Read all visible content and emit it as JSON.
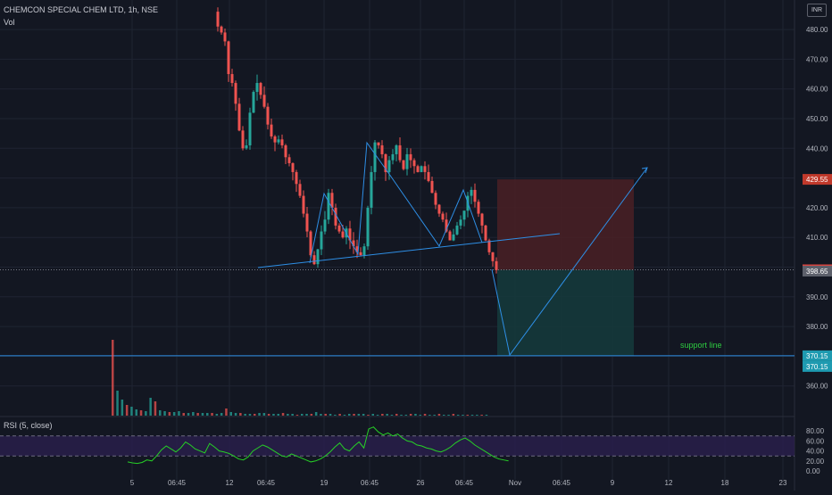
{
  "header": {
    "title": "CHEMCON SPECIAL CHEM LTD, 1h, NSE",
    "volume_label": "Vol",
    "rsi_label": "RSI (5, close)",
    "currency": "INR"
  },
  "annotation": {
    "support_label": "support line"
  },
  "colors": {
    "background": "#131722",
    "grid": "#1f2432",
    "up": "#26a69a",
    "down": "#ef5350",
    "trend": "#2e8fe6",
    "rsi": "#26d026",
    "rsi_band": "#2a1f4e",
    "loss_zone": "#4a2025",
    "profit_zone": "#15393b",
    "support_text": "#2ecc40"
  },
  "price_labels": {
    "target": "429.55",
    "last": "399.10",
    "current": "398.65",
    "support_a": "370.15",
    "support_b": "370.15"
  },
  "chart_data": {
    "type": "candlestick",
    "title": "CHEMCON SPECIAL CHEM LTD, 1h, NSE",
    "y_axis": {
      "ticks": [
        360,
        370,
        380,
        390,
        400,
        410,
        420,
        430,
        440,
        450,
        460,
        470,
        480
      ],
      "labels": [
        "360.00",
        "370.00",
        "380.00",
        "390.00",
        "400.00",
        "410.00",
        "420.00",
        "430.00",
        "440.00",
        "450.00",
        "460.00",
        "470.00",
        "480.00"
      ]
    },
    "x_axis": {
      "labels": [
        "5",
        "06:45",
        "12",
        "06:45",
        "19",
        "06:45",
        "26",
        "06:45",
        "Nov",
        "06:45",
        "9",
        "12",
        "18",
        "23"
      ]
    },
    "price_path": [
      [
        0,
        486
      ],
      [
        1,
        481
      ],
      [
        2,
        479
      ],
      [
        3,
        476
      ],
      [
        4,
        465
      ],
      [
        5,
        462
      ],
      [
        6,
        455
      ],
      [
        7,
        446
      ],
      [
        8,
        440
      ],
      [
        9,
        441
      ],
      [
        10,
        452
      ],
      [
        11,
        459
      ],
      [
        12,
        462
      ],
      [
        13,
        458
      ],
      [
        14,
        454
      ],
      [
        15,
        448
      ],
      [
        16,
        444
      ],
      [
        17,
        442
      ],
      [
        18,
        443
      ],
      [
        19,
        441
      ],
      [
        20,
        437
      ],
      [
        21,
        435
      ],
      [
        22,
        432
      ],
      [
        23,
        428
      ],
      [
        24,
        424
      ],
      [
        25,
        418
      ],
      [
        26,
        412
      ],
      [
        27,
        404
      ],
      [
        28,
        401
      ],
      [
        29,
        406
      ],
      [
        30,
        412
      ],
      [
        31,
        416
      ],
      [
        32,
        425
      ],
      [
        33,
        420
      ],
      [
        34,
        414
      ],
      [
        35,
        412
      ],
      [
        36,
        410
      ],
      [
        37,
        413
      ],
      [
        38,
        409
      ],
      [
        39,
        407
      ],
      [
        40,
        405
      ],
      [
        41,
        404
      ],
      [
        42,
        407
      ],
      [
        43,
        420
      ],
      [
        44,
        432
      ],
      [
        45,
        442
      ],
      [
        46,
        441
      ],
      [
        47,
        438
      ],
      [
        48,
        432
      ],
      [
        49,
        436
      ],
      [
        50,
        438
      ],
      [
        51,
        441
      ],
      [
        52,
        436
      ],
      [
        53,
        433
      ],
      [
        54,
        438
      ],
      [
        55,
        436
      ],
      [
        56,
        434
      ],
      [
        57,
        432
      ],
      [
        58,
        434
      ],
      [
        59,
        432
      ],
      [
        60,
        429
      ],
      [
        61,
        425
      ],
      [
        62,
        421
      ],
      [
        63,
        418
      ],
      [
        64,
        416
      ],
      [
        65,
        412
      ],
      [
        66,
        409
      ],
      [
        67,
        411
      ],
      [
        68,
        414
      ],
      [
        69,
        416
      ],
      [
        70,
        419
      ],
      [
        71,
        424
      ],
      [
        72,
        426
      ],
      [
        73,
        422
      ],
      [
        74,
        418
      ],
      [
        75,
        414
      ],
      [
        76,
        409
      ],
      [
        77,
        405
      ],
      [
        78,
        402
      ],
      [
        79,
        399
      ]
    ],
    "volume": [
      85,
      28,
      18,
      12,
      10,
      7,
      6,
      5,
      20,
      16,
      6,
      5,
      4,
      4,
      5,
      3,
      3,
      4,
      3,
      3,
      3,
      3,
      2,
      3,
      8,
      4,
      3,
      3,
      2,
      2,
      2,
      3,
      3,
      2,
      2,
      2,
      3,
      2,
      2,
      1,
      2,
      2,
      2,
      4,
      2,
      2,
      2,
      1,
      2,
      1,
      2,
      2,
      2,
      2,
      1,
      2,
      1,
      2,
      2,
      1,
      2,
      1,
      1,
      2,
      2,
      1,
      2,
      1,
      1,
      2,
      1,
      1,
      2,
      1,
      1,
      1,
      1,
      1,
      1,
      1
    ],
    "rsi": {
      "ticks": [
        0,
        20,
        40,
        60,
        80
      ],
      "labels": [
        "0.00",
        "20.00",
        "40.00",
        "60.00",
        "80.00"
      ],
      "band": [
        30,
        70
      ],
      "values": [
        18,
        16,
        15,
        17,
        22,
        20,
        30,
        42,
        50,
        44,
        38,
        46,
        58,
        52,
        44,
        40,
        36,
        55,
        48,
        40,
        38,
        35,
        30,
        24,
        22,
        28,
        40,
        46,
        52,
        48,
        42,
        36,
        30,
        28,
        34,
        30,
        26,
        22,
        18,
        20,
        24,
        30,
        38,
        48,
        56,
        44,
        40,
        50,
        58,
        46,
        84,
        88,
        78,
        72,
        76,
        70,
        74,
        66,
        60,
        58,
        52,
        50,
        46,
        44,
        40,
        38,
        42,
        48,
        56,
        62,
        66,
        60,
        52,
        46,
        40,
        34,
        28,
        24,
        22,
        20
      ]
    },
    "levels": {
      "target": 429.55,
      "entry": 399.1,
      "current": 398.65,
      "support": 370.15
    }
  }
}
